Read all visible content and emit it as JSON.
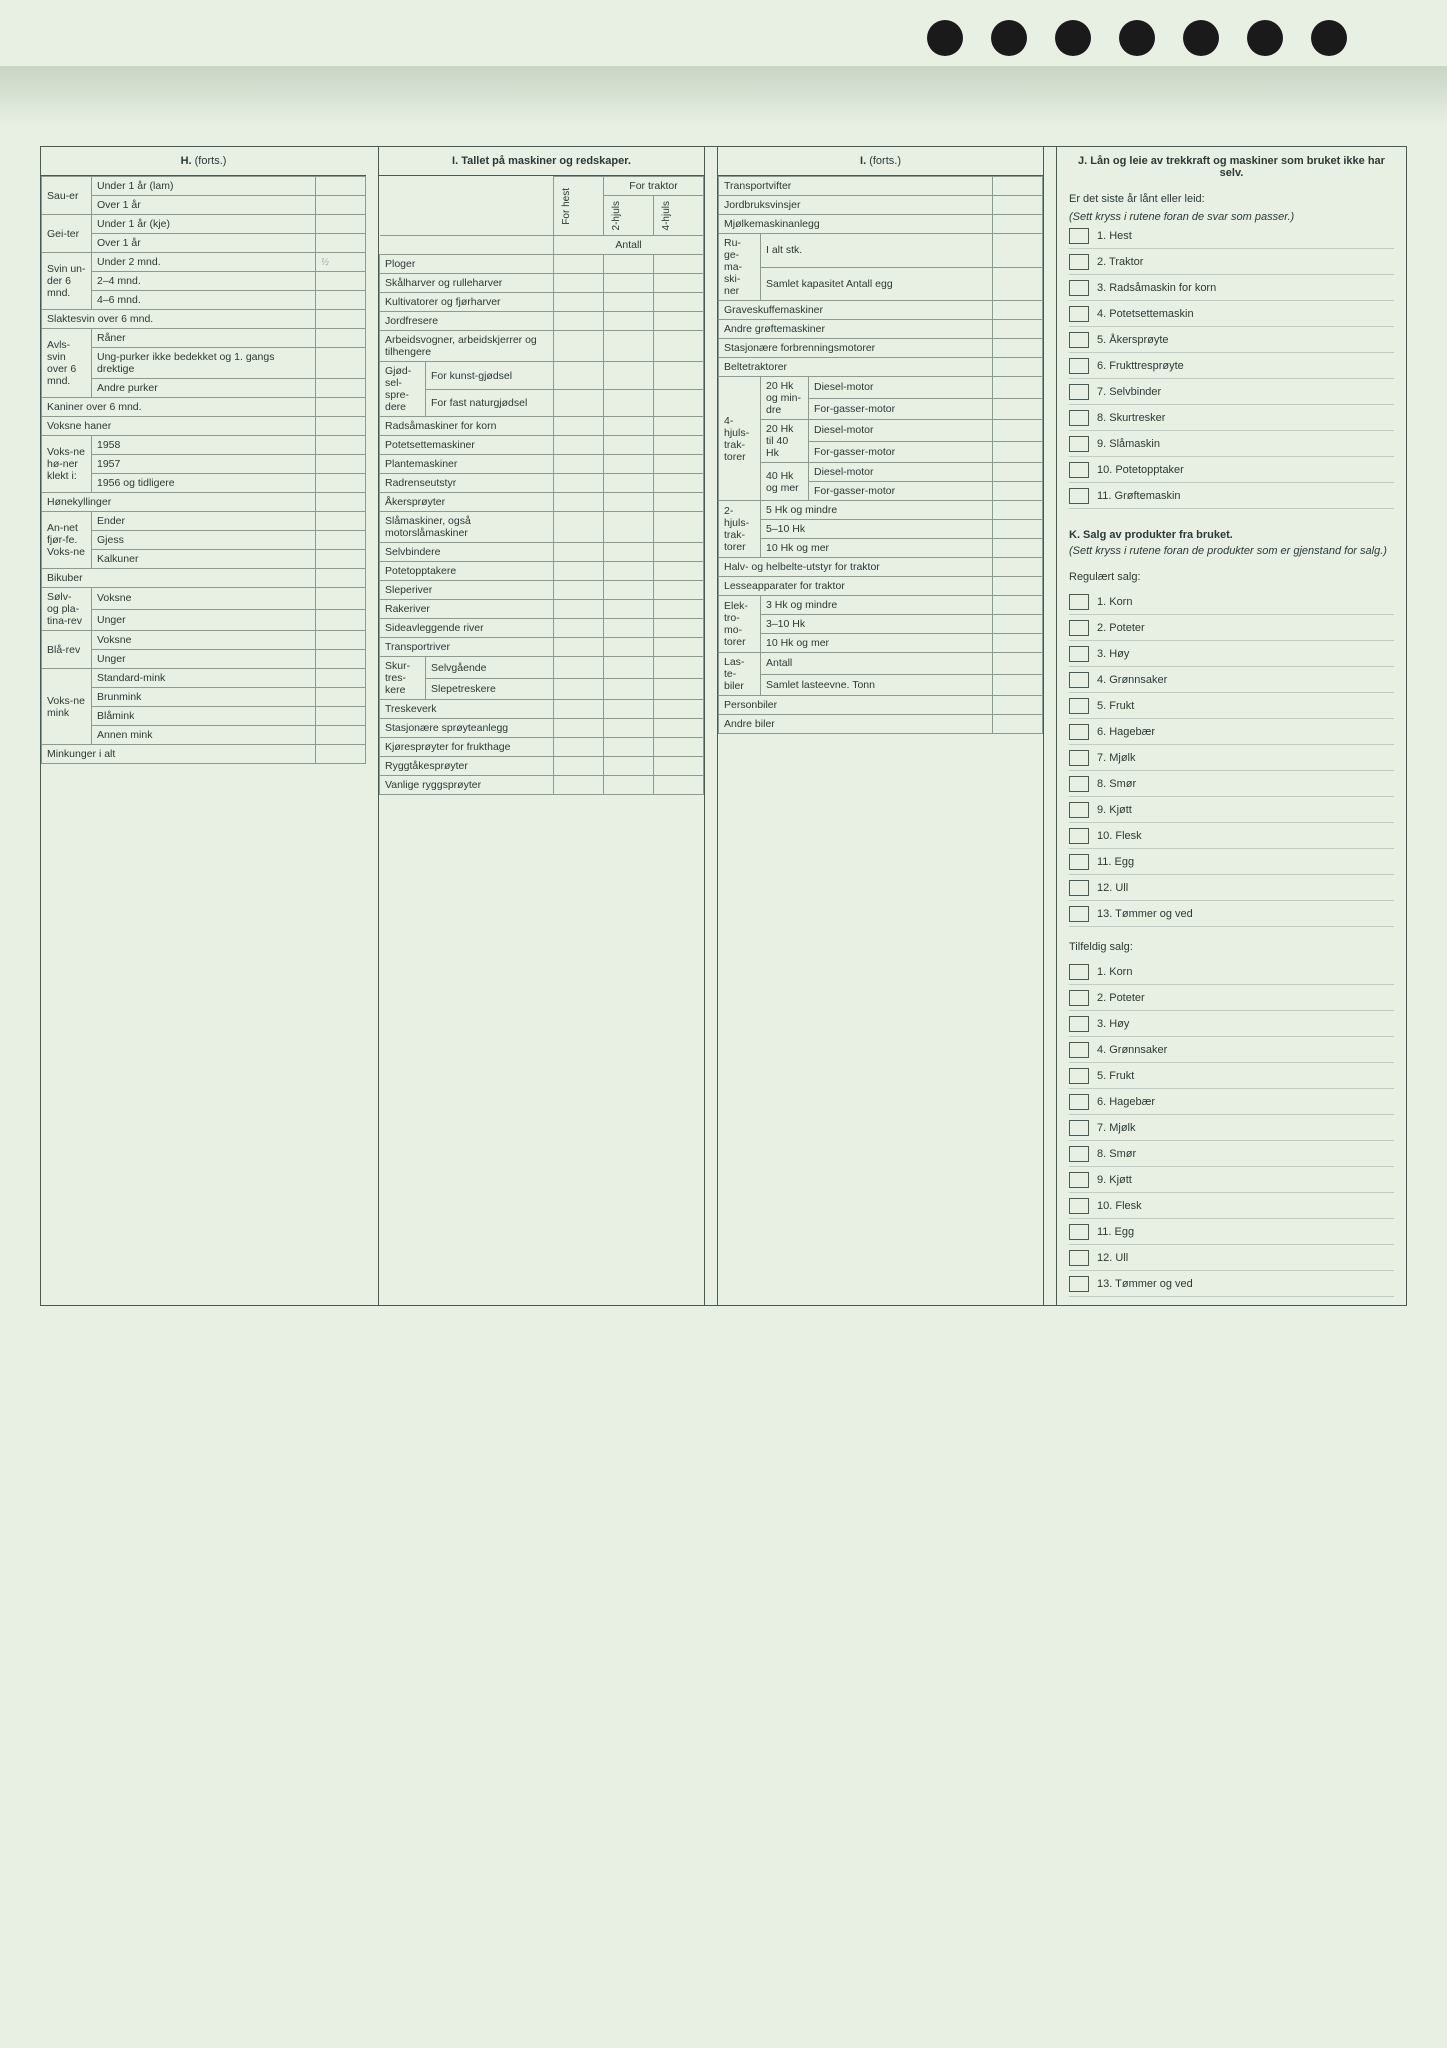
{
  "punch_holes": 7,
  "colors": {
    "bg": "#e8f0e4",
    "line": "#4a5a55",
    "text": "#2a3a35",
    "cell": "#8a9a95"
  },
  "H": {
    "title": "H.",
    "cont": "(forts.)",
    "rows": [
      {
        "g": "Sau-er",
        "sub": [
          {
            "l": "Under 1 år (lam)"
          },
          {
            "l": "Over 1 år"
          }
        ]
      },
      {
        "g": "Gei-ter",
        "sub": [
          {
            "l": "Under 1 år (kje)"
          },
          {
            "l": "Over 1 år"
          }
        ]
      },
      {
        "g": "Svin un-der 6 mnd.",
        "sub": [
          {
            "l": "Under 2 mnd.",
            "mark": "½"
          },
          {
            "l": "2–4 mnd."
          },
          {
            "l": "4–6 mnd."
          }
        ]
      },
      {
        "g": "Slaktesvin over 6 mnd.",
        "sub": []
      },
      {
        "g": "Avls-svin over 6 mnd.",
        "sub": [
          {
            "l": "Råner"
          },
          {
            "l": "Ung-purker ikke bedekket og 1. gangs drektige"
          },
          {
            "l": "Andre purker"
          }
        ]
      },
      {
        "g": "Kaniner over 6 mnd.",
        "sub": []
      },
      {
        "g": "Voksne haner",
        "sub": []
      },
      {
        "g": "Voks-ne hø-ner klekt i:",
        "sub": [
          {
            "l": "1958"
          },
          {
            "l": "1957"
          },
          {
            "l": "1956 og tidligere"
          }
        ]
      },
      {
        "g": "Hønekyllinger",
        "sub": []
      },
      {
        "g": "An-net fjør-fe. Voks-ne",
        "sub": [
          {
            "l": "Ender"
          },
          {
            "l": "Gjess"
          },
          {
            "l": "Kalkuner"
          }
        ]
      },
      {
        "g": "Bikuber",
        "sub": []
      },
      {
        "g": "Sølv- og pla-tina-rev",
        "sub": [
          {
            "l": "Voksne"
          },
          {
            "l": "Unger"
          }
        ]
      },
      {
        "g": "Blå-rev",
        "sub": [
          {
            "l": "Voksne"
          },
          {
            "l": "Unger"
          }
        ]
      },
      {
        "g": "Voks-ne mink",
        "sub": [
          {
            "l": "Standard-mink"
          },
          {
            "l": "Brunmink"
          },
          {
            "l": "Blåmink"
          },
          {
            "l": "Annen mink"
          }
        ]
      },
      {
        "g": "Minkunger i alt",
        "sub": []
      }
    ]
  },
  "I": {
    "title": "I. Tallet på maskiner og redskaper.",
    "traktor_hdr": "For traktor",
    "col_heads": [
      "For hest",
      "2-hjuls",
      "4-hjuls"
    ],
    "antall": "Antall",
    "rows": [
      "Ploger",
      "Skålharver og rulleharver",
      "Kultivatorer og fjørharver",
      "Jordfresere",
      "Arbeidsvogner, arbeidskjerrer og tilhengere",
      {
        "g": "Gjød-sel-spre-dere",
        "sub": [
          "For kunst-gjødsel",
          "For fast naturgjødsel"
        ]
      },
      "Radsåmaskiner for korn",
      "Potetsettemaskiner",
      "Plantemaskiner",
      "Radrenseutstyr",
      "Åkersprøyter",
      "Slåmaskiner, også motorslåmaskiner",
      "Selvbindere",
      "Potetopptakere",
      "Sleperiver",
      "Rakeriver",
      "Sideavleggende river",
      "Transportriver",
      {
        "g": "Skur-tres-kere",
        "sub": [
          "Selvgående",
          "Slepetreskere"
        ]
      },
      "Treskeverk",
      "Stasjonære sprøyteanlegg",
      "Kjøresprøyter for frukthage",
      "Ryggtåkesprøyter",
      "Vanlige ryggsprøyter"
    ]
  },
  "Iforts": {
    "title": "I.",
    "cont": "(forts.)",
    "top": [
      "Transportvifter",
      "Jordbruksvinsjer",
      "Mjølkemaskinanlegg"
    ],
    "ruge": {
      "g": "Ru-ge-ma-ski-ner",
      "sub": [
        "I alt stk.",
        "Samlet kapasitet Antall egg"
      ]
    },
    "mid": [
      "Graveskuffemaskiner",
      "Andre grøftemaskiner",
      "Stasjonære forbrenningsmotorer",
      "Beltetraktorer"
    ],
    "hk4": {
      "g": "4-hjuls-trak-torer",
      "groups": [
        {
          "h": "20 Hk og min-dre",
          "sub": [
            "Diesel-motor",
            "For-gasser-motor"
          ]
        },
        {
          "h": "20 Hk til 40 Hk",
          "sub": [
            "Diesel-motor",
            "For-gasser-motor"
          ]
        },
        {
          "h": "40 Hk og mer",
          "sub": [
            "Diesel-motor",
            "For-gasser-motor"
          ]
        }
      ]
    },
    "hk2": {
      "g": "2-hjuls-trak-torer",
      "sub": [
        "5 Hk og mindre",
        "5–10 Hk",
        "10 Hk og mer"
      ]
    },
    "halv": "Halv- og helbelte-utstyr for traktor",
    "lesse": "Lesseapparater for traktor",
    "elektro": {
      "g": "Elek-tro-mo-torer",
      "sub": [
        "3 Hk og mindre",
        "3–10 Hk",
        "10 Hk og mer"
      ]
    },
    "laste": {
      "g": "Las-te-biler",
      "sub": [
        "Antall",
        "Samlet lasteevne. Tonn"
      ]
    },
    "bot": [
      "Personbiler",
      "Andre biler"
    ]
  },
  "J": {
    "title": "J. Lån og leie av trekkraft og maskiner som bruket ikke har selv.",
    "lead": "Er det siste år lånt eller leid:",
    "note": "(Sett kryss i rutene foran de svar som passer.)",
    "items": [
      "Hest",
      "Traktor",
      "Radsåmaskin for korn",
      "Potetsettemaskin",
      "Åkersprøyte",
      "Frukttresprøyte",
      "Selvbinder",
      "Skurtresker",
      "Slåmaskin",
      "Potetopptaker",
      "Grøftemaskin"
    ]
  },
  "K": {
    "title": "K. Salg av produkter fra bruket.",
    "note": "(Sett kryss i rutene foran de produkter som er gjenstand for salg.)",
    "reg_title": "Regulært salg:",
    "til_title": "Tilfeldig salg:",
    "items": [
      "Korn",
      "Poteter",
      "Høy",
      "Grønnsaker",
      "Frukt",
      "Hagebær",
      "Mjølk",
      "Smør",
      "Kjøtt",
      "Flesk",
      "Egg",
      "Ull",
      "Tømmer og ved"
    ]
  }
}
